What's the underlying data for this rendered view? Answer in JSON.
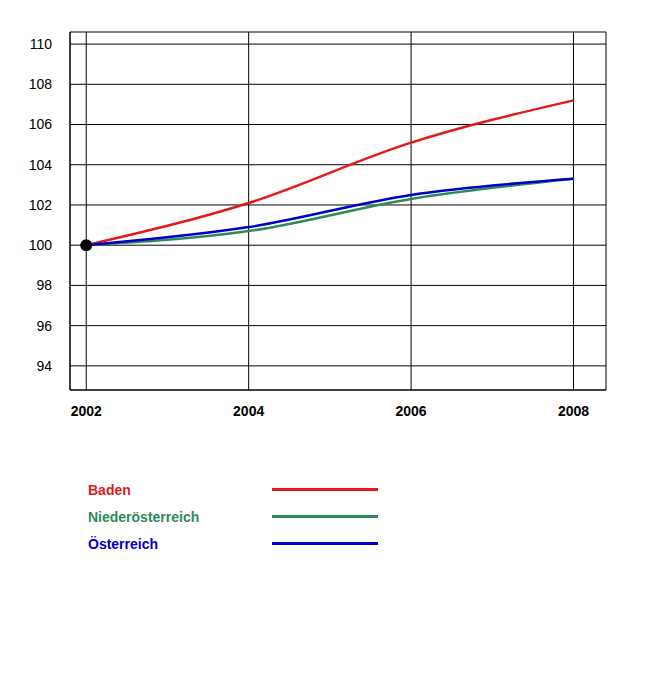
{
  "chart_data": {
    "type": "line",
    "x": [
      2002,
      2004,
      2006,
      2008
    ],
    "xlim": [
      2001.8,
      2008.4
    ],
    "xticks": [
      2002,
      2004,
      2006,
      2008
    ],
    "ylim": [
      92.8,
      110.6
    ],
    "yticks": [
      94,
      96,
      98,
      100,
      102,
      104,
      106,
      108,
      110
    ],
    "grid": true,
    "legend": "bottom",
    "series": [
      {
        "name": "Baden",
        "color": "#e31a1c",
        "values": [
          100,
          102.1,
          105.1,
          107.2
        ]
      },
      {
        "name": "Niederösterreich",
        "color": "#2e8b57",
        "values": [
          100,
          100.7,
          102.3,
          103.3
        ]
      },
      {
        "name": "Österreich",
        "color": "#0000cd",
        "values": [
          100,
          100.9,
          102.5,
          103.3
        ]
      }
    ]
  }
}
